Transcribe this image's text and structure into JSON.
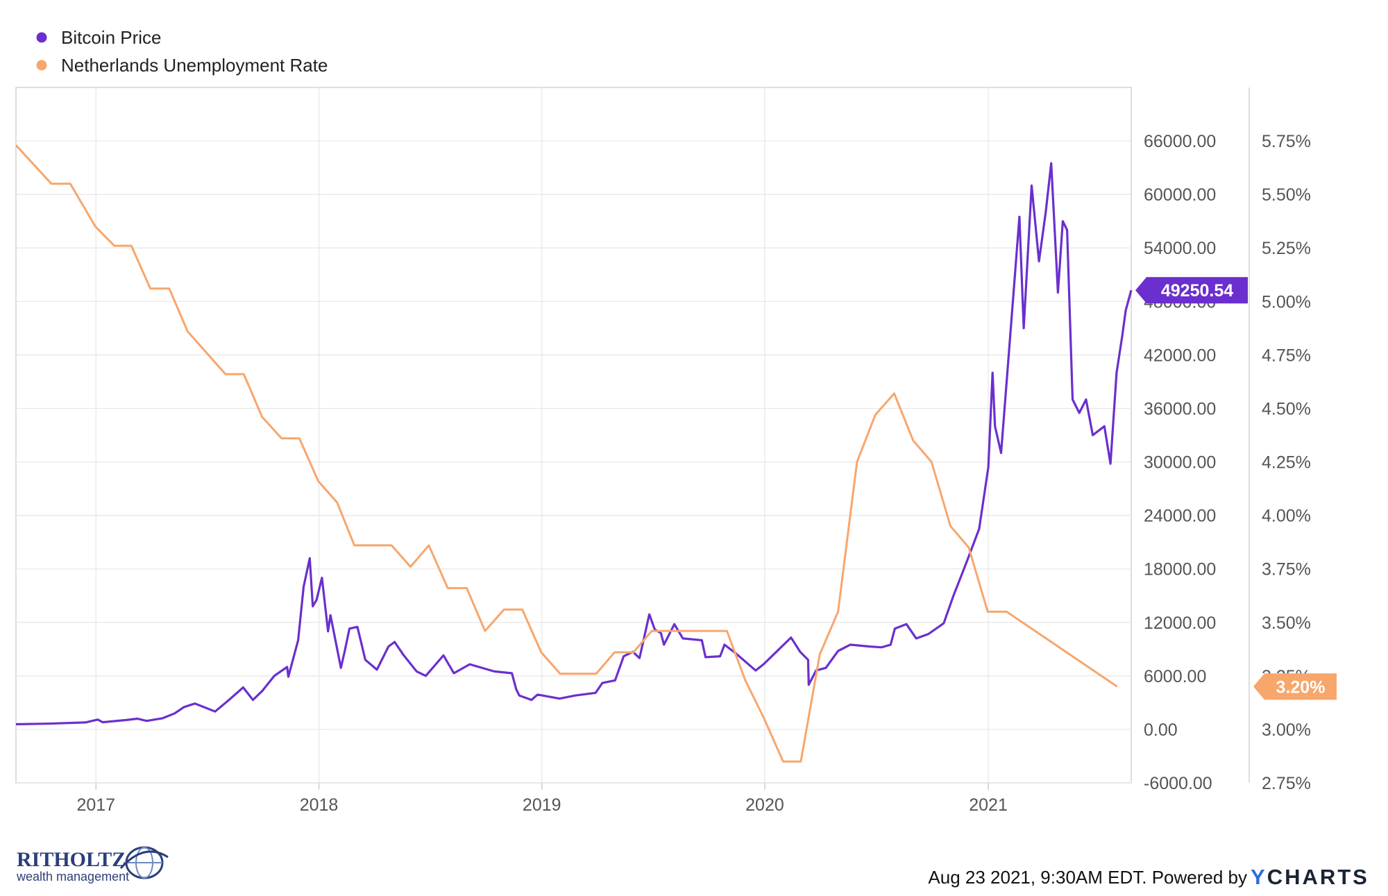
{
  "legend": [
    {
      "label": "Bitcoin Price",
      "color": "#6a2fce"
    },
    {
      "label": "Netherlands Unemployment Rate",
      "color": "#f7a66c"
    }
  ],
  "chart_data": {
    "type": "line",
    "x_axis": {
      "type": "date",
      "tick_labels": [
        "2017",
        "2018",
        "2019",
        "2020",
        "2021"
      ],
      "range": [
        "2016-08-23",
        "2021-08-23"
      ]
    },
    "y_axis_left": {
      "ticks": [
        "66000.00",
        "60000.00",
        "54000.00",
        "48000.00",
        "42000.00",
        "36000.00",
        "30000.00",
        "24000.00",
        "18000.00",
        "12000.00",
        "6000.00",
        "0.00",
        "-6000.00"
      ],
      "range": [
        -6000,
        72000
      ]
    },
    "y_axis_right": {
      "ticks": [
        "5.75%",
        "5.50%",
        "5.25%",
        "5.00%",
        "4.75%",
        "4.50%",
        "4.25%",
        "4.00%",
        "3.75%",
        "3.50%",
        "3.25%",
        "3.00%",
        "2.75%"
      ],
      "range": [
        2.75,
        6.0
      ]
    },
    "grid": true,
    "legend_position": "top-left",
    "series": [
      {
        "name": "Bitcoin Price",
        "axis": "left",
        "color": "#6a2fce",
        "last_value_label": "49250.54",
        "points": [
          [
            "2016-08-23",
            580
          ],
          [
            "2016-10-15",
            640
          ],
          [
            "2016-12-15",
            780
          ],
          [
            "2017-01-04",
            1100
          ],
          [
            "2017-01-12",
            800
          ],
          [
            "2017-02-20",
            1050
          ],
          [
            "2017-03-10",
            1200
          ],
          [
            "2017-03-25",
            950
          ],
          [
            "2017-04-20",
            1250
          ],
          [
            "2017-05-10",
            1800
          ],
          [
            "2017-05-25",
            2500
          ],
          [
            "2017-06-12",
            2900
          ],
          [
            "2017-07-15",
            2000
          ],
          [
            "2017-08-05",
            3200
          ],
          [
            "2017-08-30",
            4700
          ],
          [
            "2017-09-15",
            3300
          ],
          [
            "2017-09-30",
            4300
          ],
          [
            "2017-10-20",
            6000
          ],
          [
            "2017-11-10",
            7000
          ],
          [
            "2017-11-12",
            5900
          ],
          [
            "2017-11-28",
            10000
          ],
          [
            "2017-12-07",
            16000
          ],
          [
            "2017-12-17",
            19200
          ],
          [
            "2017-12-22",
            13800
          ],
          [
            "2017-12-28",
            14500
          ],
          [
            "2018-01-06",
            17000
          ],
          [
            "2018-01-16",
            11000
          ],
          [
            "2018-01-20",
            12800
          ],
          [
            "2018-02-06",
            6900
          ],
          [
            "2018-02-12",
            8700
          ],
          [
            "2018-02-20",
            11300
          ],
          [
            "2018-03-05",
            11500
          ],
          [
            "2018-03-18",
            7800
          ],
          [
            "2018-04-06",
            6700
          ],
          [
            "2018-04-25",
            9300
          ],
          [
            "2018-05-05",
            9800
          ],
          [
            "2018-05-20",
            8300
          ],
          [
            "2018-06-10",
            6500
          ],
          [
            "2018-06-25",
            6000
          ],
          [
            "2018-07-24",
            8300
          ],
          [
            "2018-08-10",
            6300
          ],
          [
            "2018-09-05",
            7300
          ],
          [
            "2018-10-15",
            6500
          ],
          [
            "2018-11-13",
            6300
          ],
          [
            "2018-11-20",
            4500
          ],
          [
            "2018-11-25",
            3800
          ],
          [
            "2018-12-15",
            3300
          ],
          [
            "2018-12-25",
            3900
          ],
          [
            "2019-01-30",
            3450
          ],
          [
            "2019-02-25",
            3800
          ],
          [
            "2019-03-30",
            4100
          ],
          [
            "2019-04-10",
            5200
          ],
          [
            "2019-05-01",
            5500
          ],
          [
            "2019-05-15",
            8200
          ],
          [
            "2019-05-30",
            8700
          ],
          [
            "2019-06-10",
            8000
          ],
          [
            "2019-06-26",
            12900
          ],
          [
            "2019-07-05",
            11200
          ],
          [
            "2019-07-15",
            10800
          ],
          [
            "2019-07-20",
            9500
          ],
          [
            "2019-08-06",
            11800
          ],
          [
            "2019-08-20",
            10200
          ],
          [
            "2019-09-20",
            10000
          ],
          [
            "2019-09-26",
            8100
          ],
          [
            "2019-10-20",
            8200
          ],
          [
            "2019-10-27",
            9500
          ],
          [
            "2019-11-15",
            8500
          ],
          [
            "2019-12-17",
            6600
          ],
          [
            "2019-12-30",
            7300
          ],
          [
            "2020-01-20",
            8700
          ],
          [
            "2020-02-13",
            10300
          ],
          [
            "2020-02-28",
            8700
          ],
          [
            "2020-03-12",
            7800
          ],
          [
            "2020-03-13",
            5000
          ],
          [
            "2020-03-25",
            6600
          ],
          [
            "2020-04-10",
            6900
          ],
          [
            "2020-04-30",
            8800
          ],
          [
            "2020-05-20",
            9500
          ],
          [
            "2020-06-20",
            9300
          ],
          [
            "2020-07-10",
            9200
          ],
          [
            "2020-07-25",
            9500
          ],
          [
            "2020-08-01",
            11300
          ],
          [
            "2020-08-20",
            11800
          ],
          [
            "2020-09-05",
            10200
          ],
          [
            "2020-09-25",
            10700
          ],
          [
            "2020-10-20",
            11900
          ],
          [
            "2020-11-05",
            15000
          ],
          [
            "2020-11-25",
            18500
          ],
          [
            "2020-12-17",
            22500
          ],
          [
            "2021-01-01",
            29400
          ],
          [
            "2021-01-08",
            40000
          ],
          [
            "2021-01-12",
            34000
          ],
          [
            "2021-01-22",
            31000
          ],
          [
            "2021-02-08",
            46000
          ],
          [
            "2021-02-21",
            57500
          ],
          [
            "2021-02-28",
            45000
          ],
          [
            "2021-03-13",
            61000
          ],
          [
            "2021-03-25",
            52500
          ],
          [
            "2021-04-05",
            58000
          ],
          [
            "2021-04-14",
            63500
          ],
          [
            "2021-04-25",
            49000
          ],
          [
            "2021-05-03",
            57000
          ],
          [
            "2021-05-10",
            56000
          ],
          [
            "2021-05-19",
            37000
          ],
          [
            "2021-05-30",
            35500
          ],
          [
            "2021-06-10",
            37000
          ],
          [
            "2021-06-21",
            33000
          ],
          [
            "2021-07-10",
            34000
          ],
          [
            "2021-07-20",
            29800
          ],
          [
            "2021-07-30",
            40000
          ],
          [
            "2021-08-08",
            44000
          ],
          [
            "2021-08-14",
            47000
          ],
          [
            "2021-08-23",
            49250.54
          ]
        ]
      },
      {
        "name": "Netherlands Unemployment Rate",
        "axis": "right",
        "color": "#f7a66c",
        "last_value_label": "3.20%",
        "points": [
          [
            "2016-08-23",
            5.73
          ],
          [
            "2016-10-20",
            5.55
          ],
          [
            "2016-11-20",
            5.55
          ],
          [
            "2016-12-31",
            5.35
          ],
          [
            "2017-01-31",
            5.26
          ],
          [
            "2017-02-28",
            5.26
          ],
          [
            "2017-03-31",
            5.06
          ],
          [
            "2017-05-01",
            5.06
          ],
          [
            "2017-05-31",
            4.86
          ],
          [
            "2017-08-01",
            4.66
          ],
          [
            "2017-08-31",
            4.66
          ],
          [
            "2017-09-30",
            4.46
          ],
          [
            "2017-11-01",
            4.36
          ],
          [
            "2017-11-30",
            4.36
          ],
          [
            "2017-12-31",
            4.16
          ],
          [
            "2018-01-31",
            4.06
          ],
          [
            "2018-02-28",
            3.86
          ],
          [
            "2018-04-30",
            3.86
          ],
          [
            "2018-05-31",
            3.76
          ],
          [
            "2018-06-30",
            3.86
          ],
          [
            "2018-07-31",
            3.66
          ],
          [
            "2018-08-31",
            3.66
          ],
          [
            "2018-09-30",
            3.46
          ],
          [
            "2018-10-31",
            3.56
          ],
          [
            "2018-11-30",
            3.56
          ],
          [
            "2018-12-31",
            3.36
          ],
          [
            "2019-01-31",
            3.26
          ],
          [
            "2019-02-28",
            3.26
          ],
          [
            "2019-03-31",
            3.26
          ],
          [
            "2019-04-30",
            3.36
          ],
          [
            "2019-05-31",
            3.36
          ],
          [
            "2019-06-30",
            3.46
          ],
          [
            "2019-08-31",
            3.46
          ],
          [
            "2019-09-30",
            3.46
          ],
          [
            "2019-10-31",
            3.46
          ],
          [
            "2019-11-30",
            3.23
          ],
          [
            "2019-12-31",
            3.05
          ],
          [
            "2020-01-31",
            2.85
          ],
          [
            "2020-02-29",
            2.85
          ],
          [
            "2020-03-31",
            3.35
          ],
          [
            "2020-04-30",
            3.55
          ],
          [
            "2020-05-31",
            4.25
          ],
          [
            "2020-06-30",
            4.47
          ],
          [
            "2020-07-31",
            4.57
          ],
          [
            "2020-08-31",
            4.35
          ],
          [
            "2020-09-30",
            4.25
          ],
          [
            "2020-10-31",
            3.95
          ],
          [
            "2020-11-30",
            3.85
          ],
          [
            "2020-12-31",
            3.55
          ],
          [
            "2021-01-31",
            3.55
          ],
          [
            "2021-07-31",
            3.2
          ]
        ]
      }
    ]
  },
  "footer": {
    "timestamp": "Aug 23 2021, 9:30AM EDT. Powered by",
    "brand": "YCHARTS"
  },
  "logo": {
    "name": "RITHOLTZ",
    "sub": "wealth management"
  }
}
